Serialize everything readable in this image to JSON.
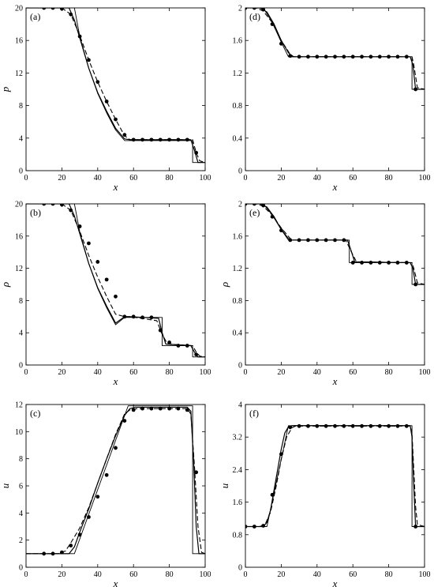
{
  "chart_data": [
    {
      "panel": "(a)",
      "type": "line",
      "xlabel": "x",
      "ylabel": "p",
      "xlim": [
        0,
        100
      ],
      "ylim": [
        0,
        20
      ],
      "xticks": [
        "0",
        "20",
        "40",
        "60",
        "80",
        "100"
      ],
      "yticks": [
        "0",
        "4",
        "8",
        "12",
        "16",
        "20"
      ],
      "series": [
        {
          "style": "solid-exact",
          "x": [
            0,
            27,
            30,
            35,
            40,
            45,
            50,
            55,
            57,
            93,
            93,
            100
          ],
          "y": [
            20,
            20,
            16.5,
            12.6,
            9.5,
            7.1,
            5.0,
            3.7,
            3.7,
            3.7,
            1,
            1
          ]
        },
        {
          "style": "solid-numerical",
          "x": [
            0,
            24,
            27,
            30,
            35,
            40,
            45,
            50,
            55,
            58,
            92,
            94,
            96,
            100
          ],
          "y": [
            20,
            20,
            18.5,
            16.3,
            12.6,
            9.6,
            7.3,
            5.2,
            3.9,
            3.8,
            3.8,
            2.5,
            1,
            1
          ]
        },
        {
          "style": "dashed",
          "x": [
            0,
            20,
            25,
            30,
            35,
            40,
            45,
            50,
            55,
            58,
            93,
            95,
            97,
            100
          ],
          "y": [
            20,
            20,
            19.2,
            16.6,
            13.6,
            10.9,
            8.5,
            6.3,
            4.3,
            3.8,
            3.8,
            2.2,
            1.2,
            1
          ]
        },
        {
          "style": "markers",
          "x": [
            10,
            15,
            20,
            25,
            30,
            35,
            40,
            45,
            50,
            55,
            60,
            65,
            70,
            75,
            80,
            85,
            90,
            95
          ],
          "y": [
            20,
            20,
            19.9,
            19.2,
            16.5,
            13.6,
            10.9,
            8.5,
            6.3,
            4.4,
            3.8,
            3.8,
            3.8,
            3.8,
            3.8,
            3.8,
            3.8,
            2.2
          ]
        }
      ]
    },
    {
      "panel": "(b)",
      "type": "line",
      "xlabel": "x",
      "ylabel": "ρ",
      "xlim": [
        0,
        100
      ],
      "ylim": [
        0,
        20
      ],
      "xticks": [
        "0",
        "20",
        "40",
        "60",
        "80",
        "100"
      ],
      "yticks": [
        "0",
        "4",
        "8",
        "12",
        "16",
        "20"
      ],
      "series": [
        {
          "style": "solid-exact",
          "x": [
            0,
            27,
            30,
            35,
            40,
            45,
            50,
            55,
            57,
            76,
            76,
            93,
            93,
            100
          ],
          "y": [
            20,
            20,
            16.5,
            12.6,
            9.5,
            7.1,
            5.0,
            5.9,
            5.9,
            5.9,
            2.4,
            2.4,
            1,
            1
          ]
        },
        {
          "style": "solid-numerical",
          "x": [
            0,
            24,
            27,
            30,
            35,
            40,
            45,
            50,
            55,
            58,
            74,
            76,
            78,
            92,
            94,
            96,
            100
          ],
          "y": [
            20,
            20,
            18.5,
            16.3,
            12.6,
            9.6,
            7.3,
            5.2,
            6.0,
            6.0,
            5.8,
            4.0,
            2.6,
            2.4,
            1.6,
            1,
            1
          ]
        },
        {
          "style": "dashed",
          "x": [
            0,
            20,
            25,
            30,
            35,
            40,
            45,
            50,
            55,
            58,
            73,
            76,
            79,
            93,
            95,
            97,
            100
          ],
          "y": [
            20,
            20,
            19.2,
            16.6,
            13.6,
            10.9,
            8.5,
            6.3,
            6.0,
            6.0,
            5.5,
            3.8,
            2.6,
            2.4,
            1.6,
            1.1,
            1
          ]
        },
        {
          "style": "markers",
          "x": [
            10,
            15,
            20,
            25,
            30,
            35,
            40,
            45,
            50,
            55,
            60,
            65,
            70,
            75,
            80,
            85,
            90,
            95
          ],
          "y": [
            20,
            20,
            19.9,
            19.2,
            17.2,
            15.1,
            12.8,
            10.6,
            8.5,
            6.0,
            6.0,
            5.9,
            5.9,
            4.3,
            2.8,
            2.4,
            2.4,
            1.3
          ]
        }
      ]
    },
    {
      "panel": "(c)",
      "type": "line",
      "xlabel": "x",
      "ylabel": "u",
      "xlim": [
        0,
        100
      ],
      "ylim": [
        0,
        12
      ],
      "xticks": [
        "0",
        "20",
        "40",
        "60",
        "80",
        "100"
      ],
      "yticks": [
        "0",
        "2",
        "4",
        "6",
        "8",
        "10",
        "12"
      ],
      "series": [
        {
          "style": "solid-exact",
          "x": [
            0,
            27,
            57,
            93,
            93,
            100
          ],
          "y": [
            1,
            1,
            11.9,
            11.9,
            1,
            1
          ]
        },
        {
          "style": "solid-numerical",
          "x": [
            0,
            24,
            27,
            30,
            35,
            40,
            45,
            50,
            55,
            58,
            61,
            90,
            92,
            93.5,
            95,
            96.5,
            100
          ],
          "y": [
            1,
            1,
            1.5,
            2.6,
            4.3,
            6.2,
            8.0,
            9.7,
            11.2,
            11.7,
            11.8,
            11.8,
            11.5,
            8.0,
            3.0,
            1.0,
            1
          ]
        },
        {
          "style": "dashed",
          "x": [
            0,
            18,
            22,
            25,
            30,
            35,
            40,
            45,
            50,
            55,
            58,
            62,
            90,
            92,
            94,
            96,
            98,
            100
          ],
          "y": [
            1,
            1,
            1.2,
            1.8,
            2.9,
            4.4,
            6.2,
            8.0,
            9.8,
            11.3,
            11.6,
            11.7,
            11.7,
            11.3,
            7.5,
            3.0,
            1.1,
            1
          ]
        },
        {
          "style": "markers",
          "x": [
            10,
            15,
            20,
            25,
            30,
            35,
            40,
            45,
            50,
            55,
            60,
            65,
            70,
            75,
            80,
            85,
            90,
            95
          ],
          "y": [
            1,
            1,
            1.1,
            1.6,
            2.4,
            3.7,
            5.2,
            6.8,
            8.8,
            10.8,
            11.6,
            11.7,
            11.7,
            11.7,
            11.7,
            11.7,
            11.6,
            7.0
          ]
        }
      ]
    },
    {
      "panel": "(d)",
      "type": "line",
      "xlabel": "x",
      "ylabel": "",
      "xlim": [
        0,
        100
      ],
      "ylim": [
        0,
        2
      ],
      "xticks": [
        "0",
        "20",
        "40",
        "60",
        "80",
        "100"
      ],
      "yticks": [
        "0",
        "0.4",
        "0.8",
        "1.2",
        "1.6",
        "2"
      ],
      "series": [
        {
          "style": "solid-exact",
          "x": [
            0,
            10,
            15,
            20,
            24,
            93,
            93,
            100
          ],
          "y": [
            2,
            2,
            1.82,
            1.58,
            1.4,
            1.4,
            1,
            1
          ]
        },
        {
          "style": "solid-numerical",
          "x": [
            0,
            8,
            12,
            16,
            20,
            24,
            26,
            92,
            93.5,
            95,
            100
          ],
          "y": [
            2,
            2,
            1.95,
            1.8,
            1.6,
            1.45,
            1.4,
            1.4,
            1.3,
            1,
            1
          ]
        },
        {
          "style": "dashed",
          "x": [
            0,
            6,
            10,
            15,
            20,
            25,
            27,
            93,
            94,
            96,
            100
          ],
          "y": [
            2,
            2,
            1.96,
            1.82,
            1.6,
            1.43,
            1.4,
            1.4,
            1.3,
            1.02,
            1
          ]
        },
        {
          "style": "markers",
          "x": [
            0,
            5,
            10,
            15,
            20,
            25,
            30,
            35,
            40,
            45,
            50,
            55,
            60,
            65,
            70,
            75,
            80,
            85,
            90,
            95
          ],
          "y": [
            2,
            2,
            1.98,
            1.8,
            1.56,
            1.41,
            1.4,
            1.4,
            1.4,
            1.4,
            1.4,
            1.4,
            1.4,
            1.4,
            1.4,
            1.4,
            1.4,
            1.4,
            1.4,
            1
          ]
        }
      ]
    },
    {
      "panel": "(e)",
      "type": "line",
      "xlabel": "x",
      "ylabel": "ρ",
      "xlim": [
        0,
        100
      ],
      "ylim": [
        0,
        2
      ],
      "xticks": [
        "0",
        "20",
        "40",
        "60",
        "80",
        "100"
      ],
      "yticks": [
        "0",
        "0.4",
        "0.8",
        "1.2",
        "1.6",
        "2"
      ],
      "series": [
        {
          "style": "solid-exact",
          "x": [
            0,
            10,
            15,
            20,
            24,
            58,
            58,
            93,
            93,
            100
          ],
          "y": [
            2,
            2,
            1.86,
            1.68,
            1.55,
            1.55,
            1.27,
            1.27,
            1,
            1
          ]
        },
        {
          "style": "solid-numerical",
          "x": [
            0,
            8,
            12,
            16,
            20,
            24,
            26,
            57,
            59,
            61,
            92,
            93.5,
            95,
            100
          ],
          "y": [
            2,
            2,
            1.96,
            1.84,
            1.68,
            1.57,
            1.55,
            1.55,
            1.42,
            1.28,
            1.27,
            1.2,
            1,
            1
          ]
        },
        {
          "style": "dashed",
          "x": [
            0,
            6,
            10,
            15,
            20,
            25,
            27,
            56,
            59,
            62,
            93,
            94,
            96,
            100
          ],
          "y": [
            2,
            2,
            1.97,
            1.86,
            1.7,
            1.57,
            1.55,
            1.55,
            1.41,
            1.28,
            1.27,
            1.2,
            1.02,
            1
          ]
        },
        {
          "style": "markers",
          "x": [
            0,
            5,
            10,
            15,
            20,
            25,
            30,
            35,
            40,
            45,
            50,
            55,
            60,
            65,
            70,
            75,
            80,
            85,
            90,
            95
          ],
          "y": [
            2,
            2,
            1.98,
            1.84,
            1.67,
            1.55,
            1.55,
            1.55,
            1.55,
            1.55,
            1.55,
            1.55,
            1.27,
            1.27,
            1.27,
            1.27,
            1.27,
            1.27,
            1.27,
            1
          ]
        }
      ]
    },
    {
      "panel": "(f)",
      "type": "line",
      "xlabel": "x",
      "ylabel": "u",
      "xlim": [
        0,
        100
      ],
      "ylim": [
        0,
        4
      ],
      "xticks": [
        "0",
        "20",
        "40",
        "60",
        "80",
        "100"
      ],
      "yticks": [
        "0",
        "0.8",
        "1.6",
        "2.4",
        "3.2",
        "4"
      ],
      "series": [
        {
          "style": "solid-exact",
          "x": [
            0,
            12,
            24,
            93,
            93,
            100
          ],
          "y": [
            1,
            1,
            3.48,
            3.48,
            1,
            1
          ]
        },
        {
          "style": "solid-numerical",
          "x": [
            0,
            10,
            12,
            14,
            16,
            18,
            20,
            22,
            24,
            26,
            92,
            93,
            94,
            95,
            100
          ],
          "y": [
            1,
            1,
            1.1,
            1.4,
            1.9,
            2.4,
            2.9,
            3.3,
            3.45,
            3.48,
            3.48,
            3.2,
            2.0,
            1.0,
            1
          ]
        },
        {
          "style": "dashed",
          "x": [
            0,
            8,
            11,
            14,
            17,
            20,
            23,
            26,
            28,
            92,
            93,
            94,
            95,
            96,
            100
          ],
          "y": [
            1,
            1,
            1.05,
            1.35,
            1.95,
            2.65,
            3.2,
            3.43,
            3.47,
            3.47,
            3.3,
            2.4,
            1.5,
            1.05,
            1
          ]
        },
        {
          "style": "markers",
          "x": [
            0,
            5,
            10,
            15,
            20,
            25,
            30,
            35,
            40,
            45,
            50,
            55,
            60,
            65,
            70,
            75,
            80,
            85,
            90,
            95
          ],
          "y": [
            1,
            1,
            1.02,
            1.78,
            2.78,
            3.44,
            3.47,
            3.47,
            3.47,
            3.47,
            3.47,
            3.47,
            3.47,
            3.47,
            3.47,
            3.47,
            3.47,
            3.47,
            3.47,
            1
          ]
        }
      ]
    }
  ]
}
